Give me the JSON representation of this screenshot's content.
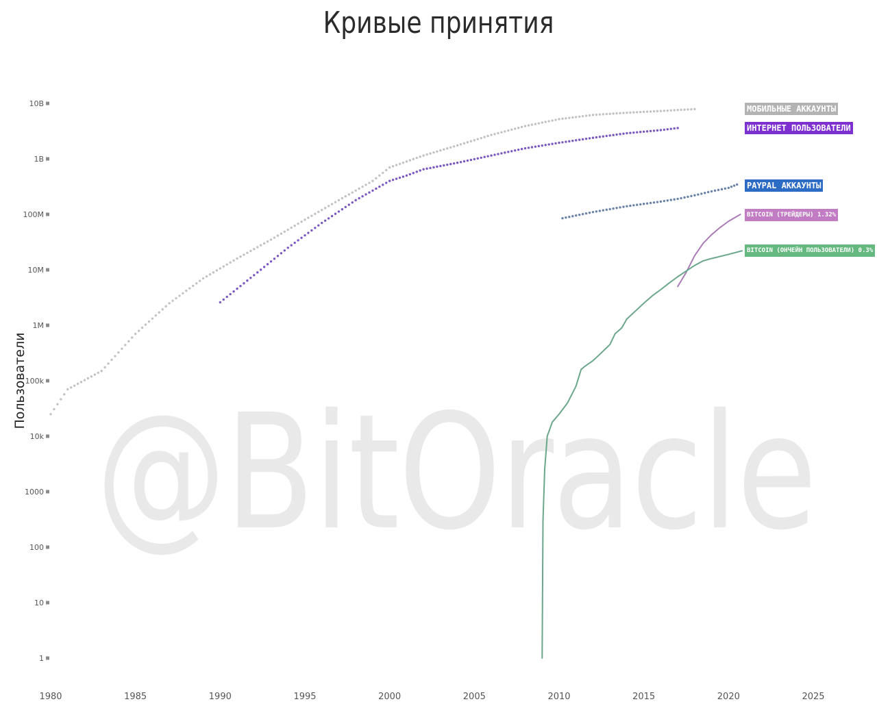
{
  "chart_data": {
    "type": "line",
    "title": "Кривые принятия",
    "ylabel": "Пользователи",
    "xlabel": "",
    "xlim": [
      1980,
      2028
    ],
    "y_scale": "log",
    "ylim": [
      1,
      10000000000
    ],
    "y_ticks": [
      {
        "value": 1,
        "label": "1"
      },
      {
        "value": 10,
        "label": "10"
      },
      {
        "value": 100,
        "label": "100"
      },
      {
        "value": 1000,
        "label": "1000"
      },
      {
        "value": 10000,
        "label": "10k"
      },
      {
        "value": 100000,
        "label": "100k"
      },
      {
        "value": 1000000,
        "label": "1M"
      },
      {
        "value": 10000000,
        "label": "10M"
      },
      {
        "value": 100000000,
        "label": "100M"
      },
      {
        "value": 1000000000,
        "label": "1B"
      },
      {
        "value": 10000000000,
        "label": "10B"
      }
    ],
    "x_ticks": [
      1980,
      1985,
      1990,
      1995,
      2000,
      2005,
      2010,
      2015,
      2020,
      2025
    ],
    "grid": false,
    "legend": "right, labels at series ends",
    "series": [
      {
        "name": "МОБИЛЬНЫЕ АККАУНТЫ",
        "color": "#c2c2c2",
        "label_bg": "#b3b3b3",
        "style": "dotted",
        "x": [
          1980,
          1981,
          1983,
          1985,
          1987,
          1989,
          1991,
          1993,
          1995,
          1997,
          1999,
          2000,
          2002,
          2004,
          2006,
          2008,
          2010,
          2012,
          2014,
          2016,
          2018
        ],
        "y": [
          25000,
          70000,
          150000,
          700000,
          2500000,
          7000000,
          16000000,
          35000000,
          80000000,
          180000000,
          400000000,
          700000000,
          1150000000,
          1750000000,
          2700000000,
          3900000000,
          5200000000,
          6200000000,
          6800000000,
          7300000000,
          7900000000
        ]
      },
      {
        "name": "ИНТЕРНЕТ ПОЛЬЗОВАТЕЛИ",
        "color": "#7b58c0",
        "label_bg": "#7d2fd0",
        "style": "dotted",
        "x": [
          1990,
          1992,
          1994,
          1996,
          1998,
          2000,
          2001,
          2002,
          2004,
          2006,
          2008,
          2010,
          2012,
          2014,
          2016,
          2017
        ],
        "y": [
          2600000,
          8000000,
          25000000,
          70000000,
          180000000,
          400000000,
          500000000,
          650000000,
          850000000,
          1150000000,
          1550000000,
          1950000000,
          2400000000,
          2900000000,
          3300000000,
          3600000000
        ]
      },
      {
        "name": "PAYPAL АККАУНТЫ",
        "color": "#6a82a8",
        "label_bg": "#2c6cc4",
        "style": "dotted",
        "x": [
          2010.2,
          2012,
          2014,
          2016,
          2017,
          2018,
          2019,
          2020,
          2020.5
        ],
        "y": [
          85000000,
          110000000,
          140000000,
          170000000,
          190000000,
          220000000,
          260000000,
          300000000,
          345000000
        ]
      },
      {
        "name": "BITCOIN (ТРЕЙДЕРЫ) 1.32%",
        "color": "#a97bb5",
        "label_bg": "#c27cc4",
        "style": "solid",
        "x": [
          2017,
          2017.5,
          2018,
          2018.5,
          2019,
          2019.5,
          2020,
          2020.7
        ],
        "y": [
          5000000,
          9000000,
          18000000,
          30000000,
          43000000,
          58000000,
          75000000,
          100000000
        ]
      },
      {
        "name": "BITCOIN (ОНЧЕЙН ПОЛЬЗОВАТЕЛИ) 0.3%",
        "color": "#6aa68a",
        "label_bg": "#65b980",
        "style": "solid",
        "x": [
          2009,
          2009.05,
          2009.15,
          2009.3,
          2009.6,
          2010,
          2010.5,
          2011,
          2011.3,
          2011.5,
          2012,
          2012.5,
          2013,
          2013.3,
          2013.7,
          2014,
          2014.5,
          2015,
          2015.5,
          2016,
          2016.5,
          2017,
          2017.5,
          2018,
          2018.5,
          2019,
          2020,
          2020.8
        ],
        "y": [
          1,
          300,
          2500,
          10000,
          18000,
          25000,
          40000,
          80000,
          160000,
          180000,
          230000,
          320000,
          450000,
          700000,
          900000,
          1300000,
          1800000,
          2500000,
          3400000,
          4400000,
          5800000,
          7500000,
          9500000,
          12000000,
          14500000,
          16000000,
          19000000,
          22000000
        ]
      }
    ]
  },
  "watermark": "@BitOracle"
}
